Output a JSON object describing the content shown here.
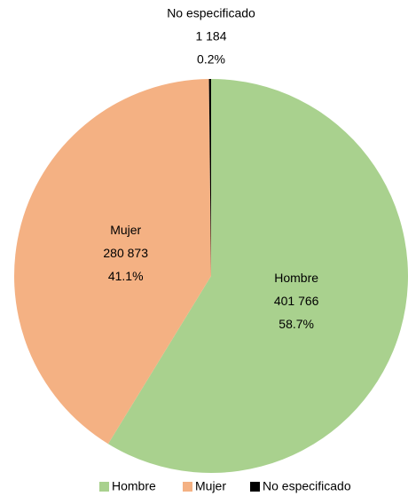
{
  "chart_data": {
    "type": "pie",
    "categories": [
      "Hombre",
      "Mujer",
      "No especificado"
    ],
    "values": [
      401766,
      280873,
      1184
    ],
    "value_labels": [
      "401 766",
      "280 873",
      "1 184"
    ],
    "percentages": [
      58.7,
      41.1,
      0.2
    ],
    "percentage_labels": [
      "58.7%",
      "41.1%",
      "0.2%"
    ],
    "colors": [
      "#a9d18e",
      "#f4b183",
      "#000000"
    ],
    "legend": "bottom"
  }
}
